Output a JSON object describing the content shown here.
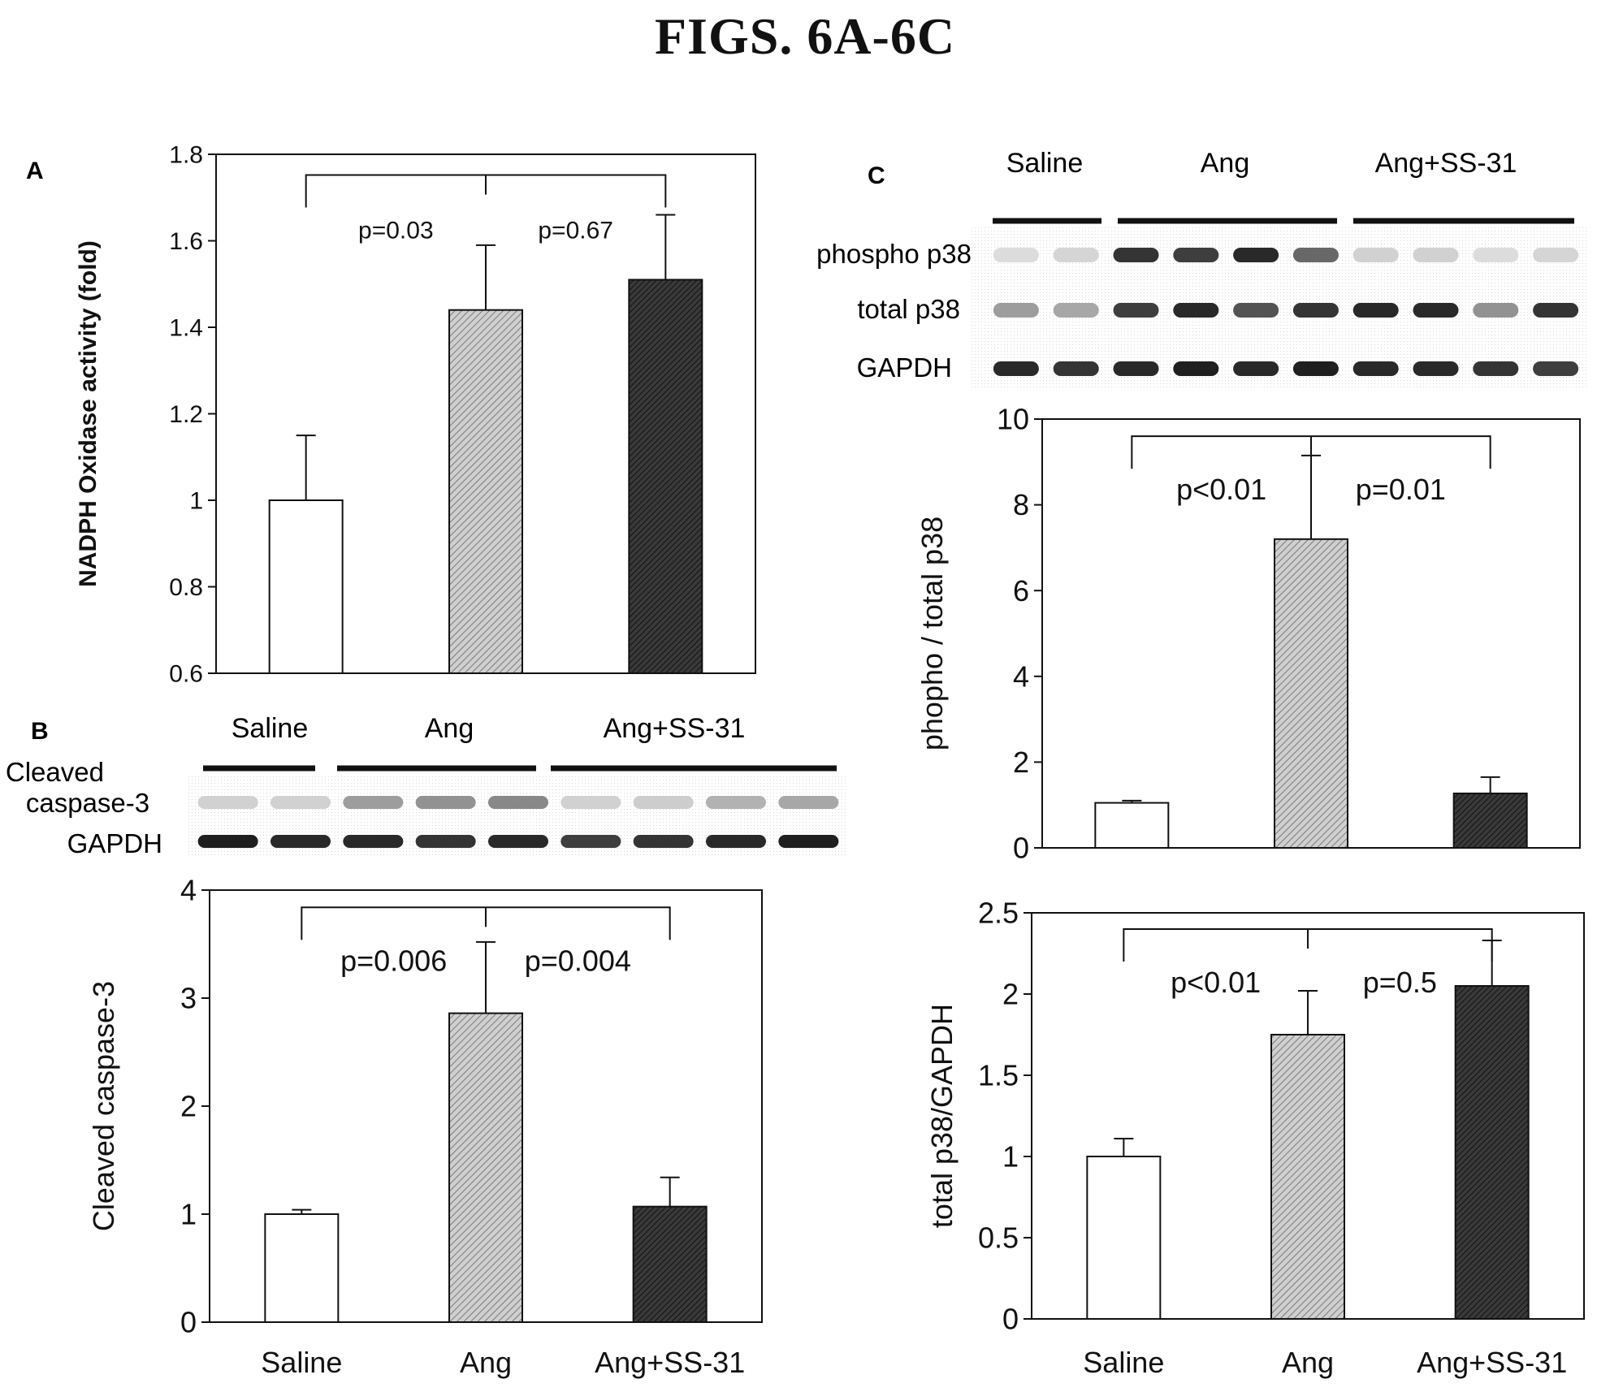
{
  "title": "FIGS. 6A-6C",
  "blots": [
    {
      "panel": "B",
      "groups": [
        "Saline",
        "Ang",
        "Ang+SS-31"
      ],
      "rows": [
        {
          "label": "Cleaved caspase-3",
          "label_lines": [
            "Cleaved",
            "caspase-3"
          ],
          "intensity": [
            0.1,
            0.1,
            0.35,
            0.4,
            0.45,
            0.1,
            0.12,
            0.25,
            0.3
          ]
        },
        {
          "label": "GAPDH",
          "label_lines": [
            "GAPDH"
          ],
          "intensity": [
            0.95,
            0.9,
            0.9,
            0.85,
            0.9,
            0.8,
            0.85,
            0.9,
            0.95
          ]
        }
      ]
    },
    {
      "panel": "C",
      "groups": [
        "Saline",
        "Ang",
        "Ang+SS-31"
      ],
      "rows": [
        {
          "label": "phospho p38",
          "label_lines": [
            "phospho p38"
          ],
          "intensity": [
            0.05,
            0.08,
            0.85,
            0.8,
            0.9,
            0.6,
            0.1,
            0.1,
            0.05,
            0.08
          ]
        },
        {
          "label": "total p38",
          "label_lines": [
            "total p38"
          ],
          "intensity": [
            0.35,
            0.3,
            0.8,
            0.9,
            0.7,
            0.85,
            0.9,
            0.9,
            0.4,
            0.85
          ]
        },
        {
          "label": "GAPDH",
          "label_lines": [
            "GAPDH"
          ],
          "intensity": [
            0.9,
            0.85,
            0.9,
            0.95,
            0.9,
            0.95,
            0.9,
            0.9,
            0.85,
            0.8
          ]
        }
      ]
    }
  ],
  "chart_data": [
    {
      "panel": "A",
      "type": "bar",
      "categories": [
        "",
        "",
        ""
      ],
      "values": [
        1.0,
        1.44,
        1.51
      ],
      "errors": [
        0.15,
        0.15,
        0.15
      ],
      "ylabel": "NADPH Oxidase activity (fold)",
      "ylim": [
        0.6,
        1.8
      ],
      "yticks": [
        0.6,
        0.8,
        1,
        1.2,
        1.4,
        1.6,
        1.8
      ],
      "ytick_labels": [
        "0.6",
        "0.8",
        "1",
        "1.2",
        "1.4",
        "1.6",
        "1.8"
      ],
      "bar_fills": [
        "white",
        "hatch-light",
        "hatch-dark"
      ],
      "annotations": [
        {
          "label": "p=0.03",
          "from": 0,
          "to": 2
        },
        {
          "label": "p=0.67",
          "from": 1,
          "to": 2
        }
      ],
      "grid": false
    },
    {
      "panel": "B",
      "type": "bar",
      "categories": [
        "Saline",
        "Ang",
        "Ang+SS-31"
      ],
      "values": [
        1.0,
        2.86,
        1.07
      ],
      "errors": [
        0.04,
        0.66,
        0.27
      ],
      "ylabel": "Cleaved caspase-3",
      "ylim": [
        0,
        4
      ],
      "yticks": [
        0,
        1,
        2,
        3,
        4
      ],
      "ytick_labels": [
        "0",
        "1",
        "2",
        "3",
        "4"
      ],
      "bar_fills": [
        "white",
        "hatch-light",
        "hatch-dark"
      ],
      "annotations": [
        {
          "label": "p=0.006",
          "from": 0,
          "to": 1
        },
        {
          "label": "p=0.004",
          "from": 1,
          "to": 2
        }
      ],
      "grid": false
    },
    {
      "panel": "C",
      "type": "bar",
      "categories": [
        "",
        "",
        ""
      ],
      "values": [
        1.05,
        7.2,
        1.27
      ],
      "errors": [
        0.05,
        1.95,
        0.38
      ],
      "ylabel": "phopho / total p38",
      "ylim": [
        0,
        10
      ],
      "yticks": [
        0,
        2,
        4,
        6,
        8,
        10
      ],
      "ytick_labels": [
        "0",
        "2",
        "4",
        "6",
        "8",
        "10"
      ],
      "bar_fills": [
        "white",
        "hatch-light",
        "hatch-dark"
      ],
      "annotations": [
        {
          "label": "p<0.01",
          "from": 0,
          "to": 1
        },
        {
          "label": "p=0.01",
          "from": 1,
          "to": 2
        }
      ],
      "grid": false
    },
    {
      "panel": "C",
      "type": "bar",
      "categories": [
        "Saline",
        "Ang",
        "Ang+SS-31"
      ],
      "values": [
        1.0,
        1.75,
        2.05
      ],
      "errors": [
        0.11,
        0.27,
        0.28
      ],
      "ylabel": "total p38/GAPDH",
      "ylim": [
        0,
        2.5
      ],
      "yticks": [
        0,
        0.5,
        1,
        1.5,
        2,
        2.5
      ],
      "ytick_labels": [
        "0",
        "0.5",
        "1",
        "1.5",
        "2",
        "2.5"
      ],
      "bar_fills": [
        "white",
        "hatch-light",
        "hatch-dark"
      ],
      "annotations": [
        {
          "label": "p<0.01",
          "from": 0,
          "to": 1
        },
        {
          "label": "p=0.5",
          "from": 1,
          "to": 2
        }
      ],
      "grid": false
    }
  ]
}
